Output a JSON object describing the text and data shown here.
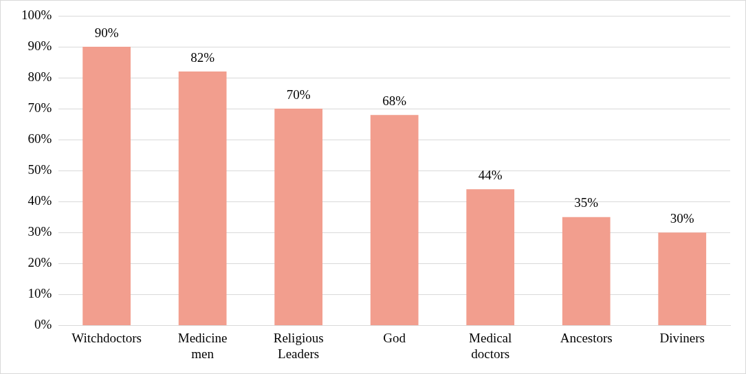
{
  "chart_data": {
    "type": "bar",
    "categories": [
      "Witchdoctors",
      "Medicine men",
      "Religious Leaders",
      "God",
      "Medical doctors",
      "Ancestors",
      "Diviners"
    ],
    "values": [
      90,
      82,
      70,
      68,
      44,
      35,
      30
    ],
    "value_labels": [
      "90%",
      "82%",
      "70%",
      "68%",
      "44%",
      "35%",
      "30%"
    ],
    "color": "#f29e8e",
    "ylim": [
      0,
      100
    ],
    "yticks": [
      {
        "value": 0,
        "label": "0%"
      },
      {
        "value": 10,
        "label": "10%"
      },
      {
        "value": 20,
        "label": "20%"
      },
      {
        "value": 30,
        "label": "30%"
      },
      {
        "value": 40,
        "label": "40%"
      },
      {
        "value": 50,
        "label": "50%"
      },
      {
        "value": 60,
        "label": "60%"
      },
      {
        "value": 70,
        "label": "70%"
      },
      {
        "value": 80,
        "label": "80%"
      },
      {
        "value": 90,
        "label": "90%"
      },
      {
        "value": 100,
        "label": "100%"
      }
    ],
    "grid": "y",
    "legend": false
  }
}
